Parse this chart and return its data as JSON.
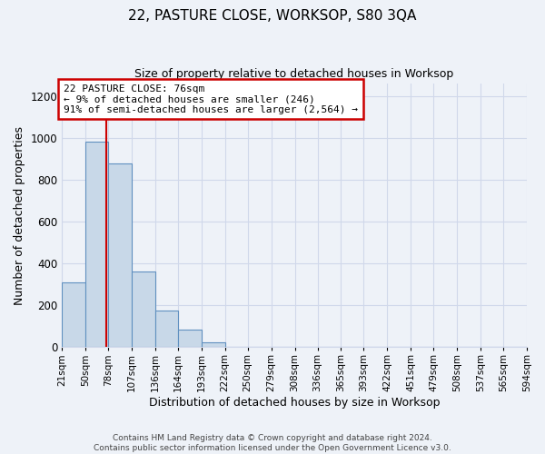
{
  "title": "22, PASTURE CLOSE, WORKSOP, S80 3QA",
  "subtitle": "Size of property relative to detached houses in Worksop",
  "xlabel": "Distribution of detached houses by size in Worksop",
  "ylabel": "Number of detached properties",
  "bar_values": [
    310,
    980,
    880,
    360,
    175,
    85,
    22,
    0,
    0,
    0,
    0,
    0,
    0,
    0,
    0,
    0,
    0,
    0,
    0,
    0
  ],
  "bin_edges": [
    21,
    50,
    78,
    107,
    136,
    164,
    193,
    222,
    250,
    279,
    308,
    336,
    365,
    393,
    422,
    451,
    479,
    508,
    537,
    565,
    594
  ],
  "tick_labels": [
    "21sqm",
    "50sqm",
    "78sqm",
    "107sqm",
    "136sqm",
    "164sqm",
    "193sqm",
    "222sqm",
    "250sqm",
    "279sqm",
    "308sqm",
    "336sqm",
    "365sqm",
    "393sqm",
    "422sqm",
    "451sqm",
    "479sqm",
    "508sqm",
    "537sqm",
    "565sqm",
    "594sqm"
  ],
  "ylim": [
    0,
    1260
  ],
  "yticks": [
    0,
    200,
    400,
    600,
    800,
    1000,
    1200
  ],
  "bar_color": "#c8d8e8",
  "bar_edge_color": "#6090c0",
  "red_line_x": 76,
  "annotation_text_line1": "22 PASTURE CLOSE: 76sqm",
  "annotation_text_line2": "← 9% of detached houses are smaller (246)",
  "annotation_text_line3": "91% of semi-detached houses are larger (2,564) →",
  "annotation_box_color": "#ffffff",
  "annotation_box_edge_color": "#cc0000",
  "grid_color": "#d0d8ea",
  "background_color": "#eef2f8",
  "footer_line1": "Contains HM Land Registry data © Crown copyright and database right 2024.",
  "footer_line2": "Contains public sector information licensed under the Open Government Licence v3.0."
}
